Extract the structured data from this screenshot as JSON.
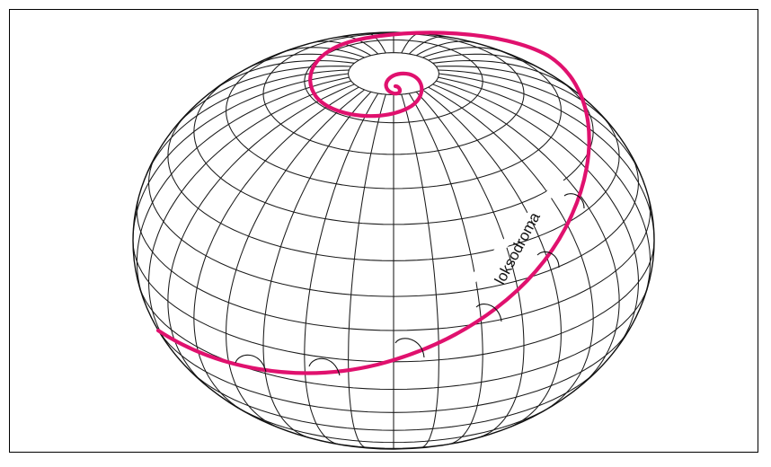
{
  "diagram": {
    "label": "loksodroma",
    "curve_color": "#e0116e",
    "line_color": "#111111",
    "background": "#ffffff"
  }
}
